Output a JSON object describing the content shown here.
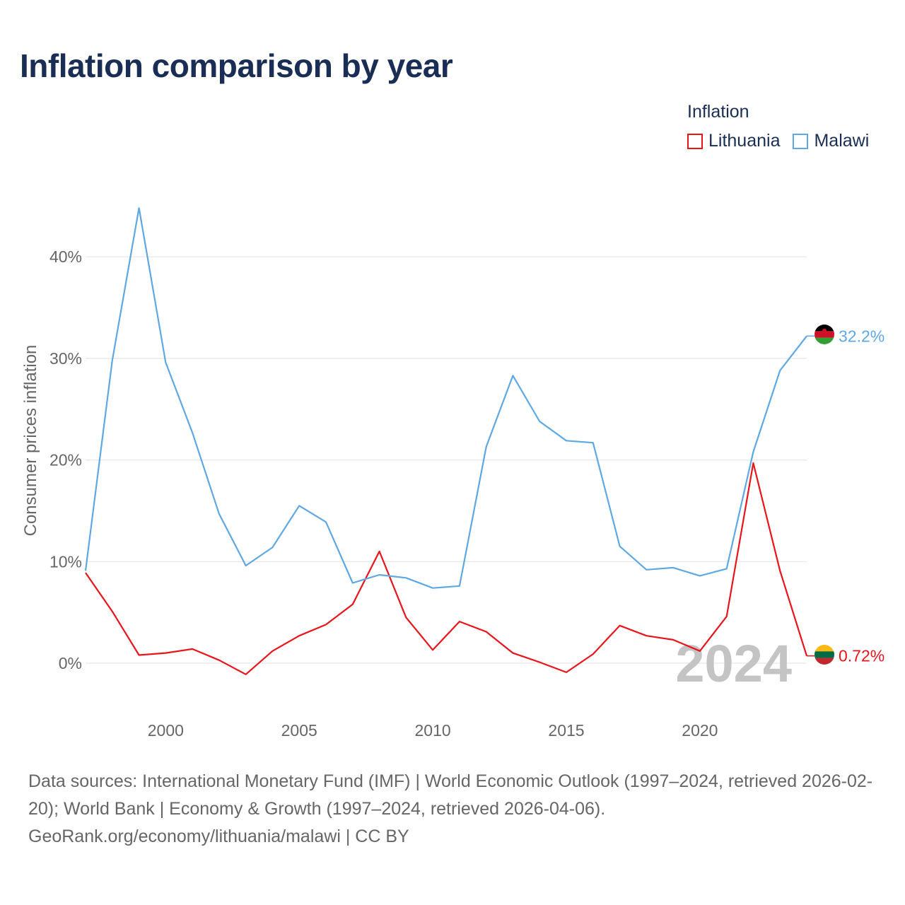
{
  "title": "Inflation comparison by year",
  "legend": {
    "title": "Inflation",
    "items": [
      {
        "label": "Lithuania",
        "color": "#e8151b"
      },
      {
        "label": "Malawi",
        "color": "#5ea8e4"
      }
    ]
  },
  "chart_data": {
    "type": "line",
    "title": "Inflation comparison by year",
    "xlabel": "",
    "ylabel": "Consumer prices inflation",
    "xlim": [
      1997,
      2024
    ],
    "ylim": [
      -5,
      48
    ],
    "y_ticks": [
      0,
      10,
      20,
      30,
      40
    ],
    "y_tick_labels": [
      "0%",
      "10%",
      "20%",
      "30%",
      "40%"
    ],
    "x_ticks": [
      2000,
      2005,
      2010,
      2015,
      2020
    ],
    "x_tick_labels": [
      "2000",
      "2005",
      "2010",
      "2015",
      "2020"
    ],
    "grid": true,
    "watermark_year": "2024",
    "x": [
      1997,
      1998,
      1999,
      2000,
      2001,
      2002,
      2003,
      2004,
      2005,
      2006,
      2007,
      2008,
      2009,
      2010,
      2011,
      2012,
      2013,
      2014,
      2015,
      2016,
      2017,
      2018,
      2019,
      2020,
      2021,
      2022,
      2023,
      2024
    ],
    "series": [
      {
        "name": "Lithuania",
        "color": "#e8151b",
        "end_label": "0.72%",
        "flag": "lithuania-flag",
        "values": [
          8.9,
          5.1,
          0.8,
          1.0,
          1.4,
          0.3,
          -1.1,
          1.2,
          2.7,
          3.8,
          5.8,
          11.0,
          4.5,
          1.3,
          4.1,
          3.1,
          1.0,
          0.1,
          -0.9,
          0.9,
          3.7,
          2.7,
          2.3,
          1.2,
          4.6,
          19.7,
          9.1,
          0.72
        ]
      },
      {
        "name": "Malawi",
        "color": "#5ea8e4",
        "end_label": "32.2%",
        "flag": "malawi-flag",
        "values": [
          9.1,
          29.8,
          44.8,
          29.6,
          22.7,
          14.7,
          9.6,
          11.4,
          15.5,
          13.9,
          7.9,
          8.7,
          8.4,
          7.4,
          7.6,
          21.3,
          28.3,
          23.8,
          21.9,
          21.7,
          11.5,
          9.2,
          9.4,
          8.6,
          9.3,
          20.8,
          28.8,
          32.2
        ]
      }
    ]
  },
  "footer": {
    "line1": "Data sources: International Monetary Fund (IMF) | World Economic Outlook (1997–2024, retrieved 2026-02-20); World Bank | Economy & Growth (1997–2024, retrieved 2026-04-06).",
    "line2": "GeoRank.org/economy/lithuania/malawi | CC BY"
  }
}
